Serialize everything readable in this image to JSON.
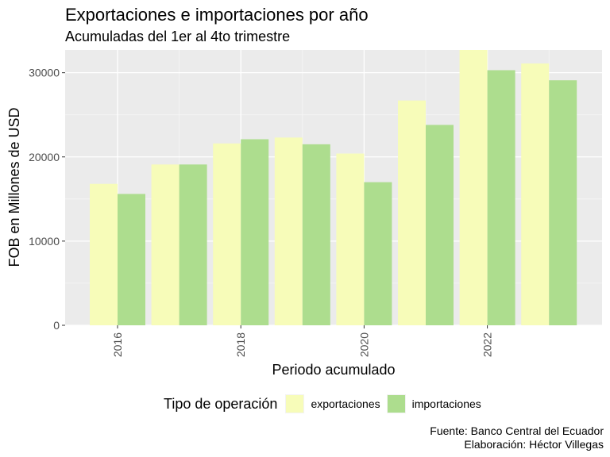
{
  "title": "Exportaciones e importaciones por año",
  "subtitle": "Acumuladas del 1er al 4to trimestre",
  "legend": {
    "title": "Tipo de operación",
    "items": [
      {
        "label": "exportaciones",
        "color": "#f7fcb9"
      },
      {
        "label": "importaciones",
        "color": "#addd8e"
      }
    ]
  },
  "caption": {
    "line1": "Fuente: Banco Central del Ecuador",
    "line2": "Elaboración: Héctor Villegas"
  },
  "chart_data": {
    "type": "bar",
    "categories": [
      2016,
      2017,
      2018,
      2019,
      2020,
      2021,
      2022,
      2023
    ],
    "series": [
      {
        "name": "exportaciones",
        "color": "#f7fcb9",
        "values": [
          16800,
          19100,
          21600,
          22300,
          20400,
          26700,
          32700,
          31100
        ]
      },
      {
        "name": "importaciones",
        "color": "#addd8e",
        "values": [
          15600,
          19100,
          22100,
          21500,
          17000,
          23800,
          30300,
          29100
        ]
      }
    ],
    "xlabel": "Periodo acumulado",
    "ylabel": "FOB en Millones de USD",
    "x_ticks": [
      2016,
      2018,
      2020,
      2022
    ],
    "y_ticks": [
      0,
      10000,
      20000,
      30000
    ],
    "ylim": [
      0,
      32700
    ],
    "panel_background": "#ebebeb",
    "gridlines": "white"
  }
}
